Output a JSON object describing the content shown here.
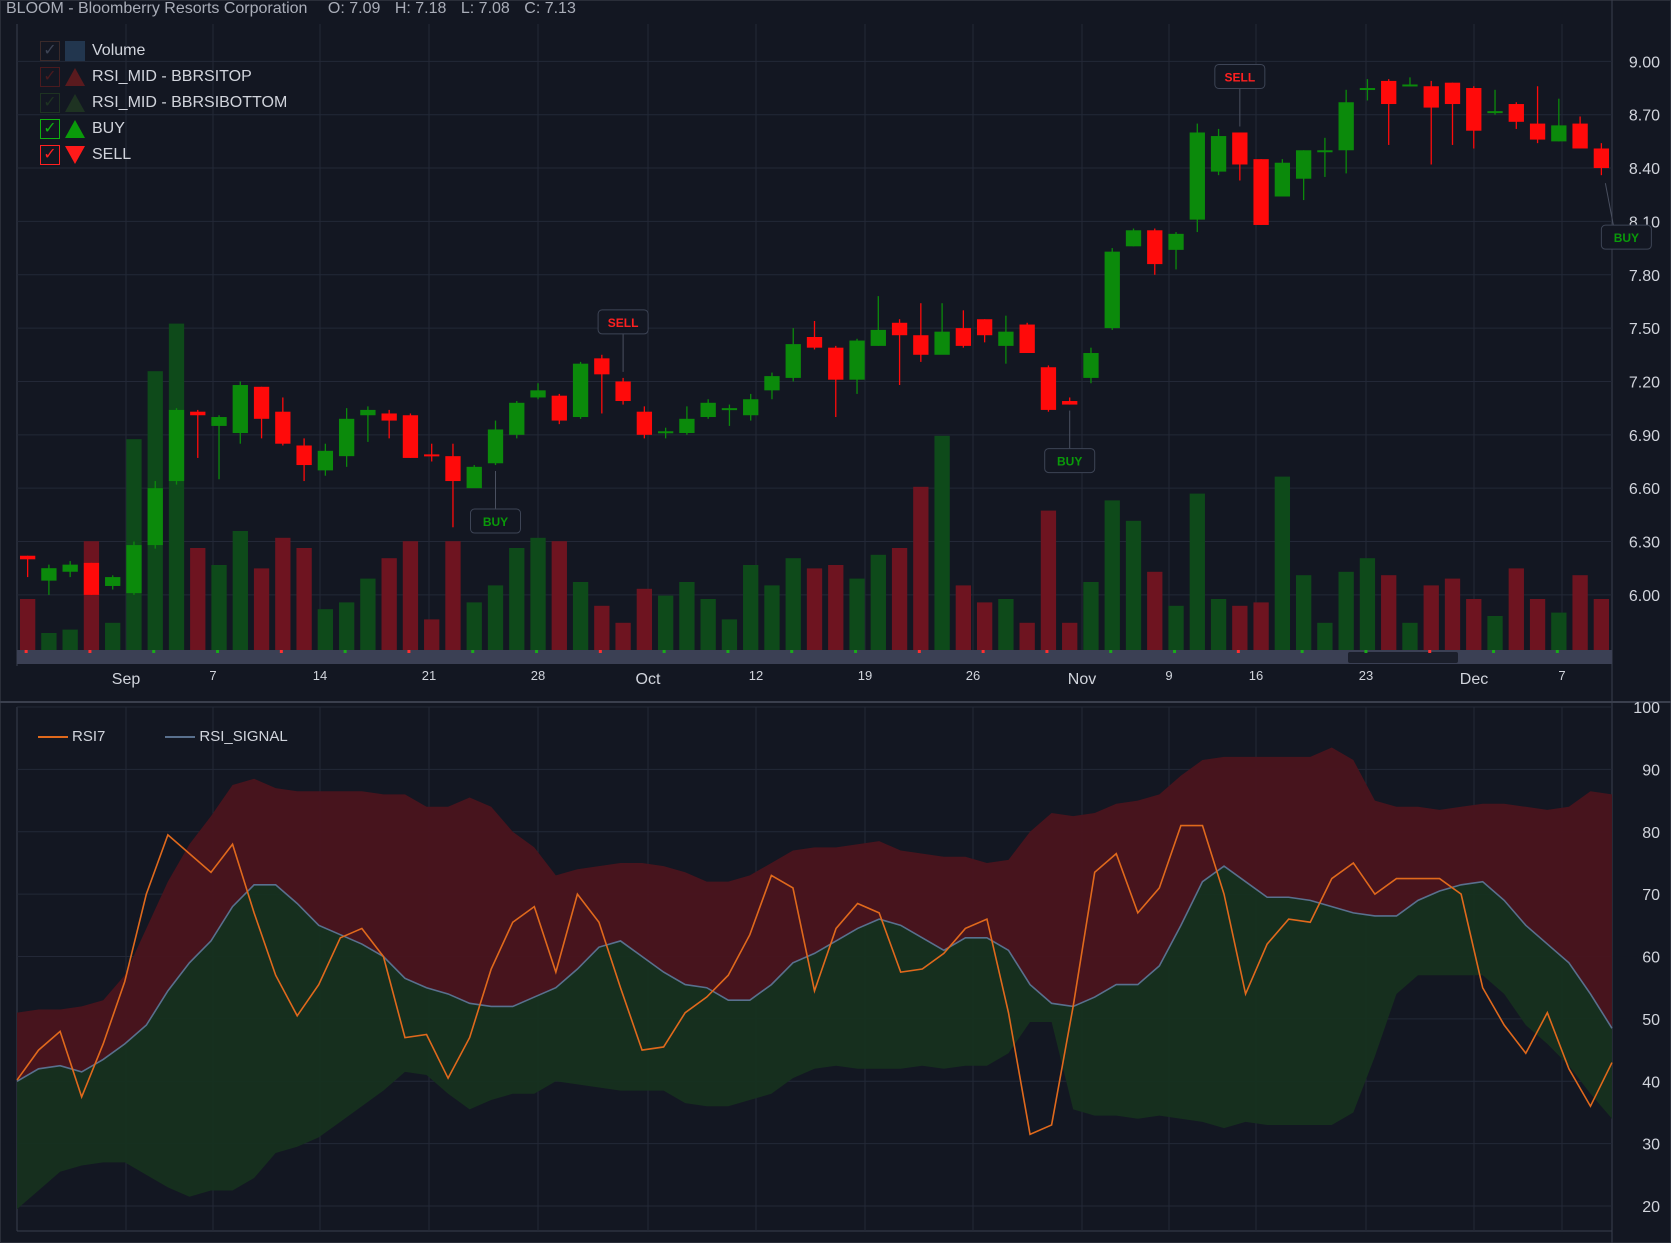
{
  "header": {
    "symbol_title": "BLOOM - Bloomberry Resorts Corporation",
    "open": "O: 7.09",
    "high": "H: 7.18",
    "low": "L: 7.08",
    "close": "C: 7.13"
  },
  "legend": {
    "items": [
      {
        "label": "Volume",
        "checked": false,
        "icon": "volume-swatch",
        "color": "#22364e"
      },
      {
        "label": "RSI_MID - BBRSITOP",
        "checked": false,
        "icon": "triangle-up",
        "color": "#5a1a1e"
      },
      {
        "label": "RSI_MID - BBRSIBOTTOM",
        "checked": false,
        "icon": "triangle-up",
        "color": "#1e3322"
      },
      {
        "label": "BUY",
        "checked": true,
        "icon": "triangle-up",
        "color": "#0a8a0a"
      },
      {
        "label": "SELL",
        "checked": true,
        "icon": "triangle-down",
        "color": "#ff1a1a"
      }
    ]
  },
  "rsi_legend": {
    "rsi7": "RSI7",
    "rsi_signal": "RSI_SIGNAL"
  },
  "colors": {
    "background": "#131722",
    "up": "#0b8a0b",
    "down": "#ff0a0a",
    "volume_up": "#0e4a1a",
    "volume_down": "#6e1420",
    "rsi7": "#e0691c",
    "rsi_signal": "#59708e",
    "band_top": "#4a141e",
    "band_bottom": "#16301f",
    "grid": "#232837"
  },
  "chart_data": [
    {
      "type": "candlestick",
      "title": "BLOOM - Bloomberry Resorts Corporation",
      "y_ticks": [
        "9.00",
        "8.70",
        "8.40",
        "8.10",
        "7.80",
        "7.50",
        "7.20",
        "6.90",
        "6.60",
        "6.30",
        "6.00"
      ],
      "ylim": [
        5.69,
        9.21
      ],
      "x_tick_labels": [
        "Sep",
        "7",
        "14",
        "21",
        "28",
        "Oct",
        "12",
        "19",
        "26",
        "Nov",
        "9",
        "16",
        "23",
        "Dec",
        "7"
      ],
      "candles": [
        [
          6.22,
          6.2,
          6.22,
          6.1
        ],
        [
          6.08,
          6.15,
          6.17,
          6.0
        ],
        [
          6.13,
          6.17,
          6.19,
          6.1
        ],
        [
          6.18,
          6.0,
          6.18,
          6.0
        ],
        [
          6.05,
          6.1,
          6.11,
          6.03
        ],
        [
          6.01,
          6.28,
          6.3,
          6.0
        ],
        [
          6.28,
          6.6,
          6.64,
          6.26
        ],
        [
          6.64,
          7.04,
          7.05,
          6.62
        ],
        [
          7.03,
          7.01,
          7.04,
          6.77
        ],
        [
          6.95,
          7.0,
          7.01,
          6.65
        ],
        [
          6.91,
          7.18,
          7.2,
          6.85
        ],
        [
          7.17,
          6.99,
          7.17,
          6.88
        ],
        [
          7.03,
          6.85,
          7.11,
          6.84
        ],
        [
          6.84,
          6.73,
          6.88,
          6.64
        ],
        [
          6.7,
          6.81,
          6.85,
          6.67
        ],
        [
          6.78,
          6.99,
          7.05,
          6.72
        ],
        [
          7.01,
          7.04,
          7.06,
          6.86
        ],
        [
          7.02,
          6.98,
          7.04,
          6.88
        ],
        [
          7.01,
          6.77,
          7.02,
          6.77
        ],
        [
          6.79,
          6.78,
          6.85,
          6.75
        ],
        [
          6.78,
          6.64,
          6.85,
          6.38
        ],
        [
          6.6,
          6.72,
          6.73,
          6.62
        ],
        [
          6.74,
          6.93,
          6.98,
          6.73
        ],
        [
          6.9,
          7.08,
          7.09,
          6.88
        ],
        [
          7.11,
          7.15,
          7.19,
          7.1
        ],
        [
          7.12,
          6.98,
          7.13,
          6.96
        ],
        [
          7.0,
          7.3,
          7.31,
          6.99
        ],
        [
          7.33,
          7.24,
          7.35,
          7.02
        ],
        [
          7.2,
          7.09,
          7.22,
          7.07
        ],
        [
          7.03,
          6.9,
          7.06,
          6.88
        ],
        [
          6.92,
          6.92,
          6.94,
          6.88
        ],
        [
          6.91,
          6.99,
          7.06,
          6.9
        ],
        [
          7.0,
          7.08,
          7.1,
          6.99
        ],
        [
          7.05,
          7.05,
          7.07,
          6.95
        ],
        [
          7.01,
          7.1,
          7.13,
          6.98
        ],
        [
          7.15,
          7.23,
          7.25,
          7.1
        ],
        [
          7.22,
          7.41,
          7.5,
          7.2
        ],
        [
          7.45,
          7.39,
          7.54,
          7.38
        ],
        [
          7.39,
          7.21,
          7.4,
          7.0
        ],
        [
          7.21,
          7.43,
          7.44,
          7.13
        ],
        [
          7.4,
          7.49,
          7.68,
          7.4
        ],
        [
          7.53,
          7.46,
          7.55,
          7.18
        ],
        [
          7.46,
          7.35,
          7.64,
          7.31
        ],
        [
          7.35,
          7.48,
          7.64,
          7.36
        ],
        [
          7.5,
          7.4,
          7.6,
          7.39
        ],
        [
          7.55,
          7.46,
          7.55,
          7.42
        ],
        [
          7.4,
          7.48,
          7.57,
          7.3
        ],
        [
          7.52,
          7.36,
          7.53,
          7.36
        ],
        [
          7.28,
          7.04,
          7.29,
          7.03
        ],
        [
          7.09,
          7.07,
          7.11,
          7.07
        ],
        [
          7.22,
          7.36,
          7.39,
          7.19
        ],
        [
          7.5,
          7.93,
          7.95,
          7.49
        ],
        [
          7.96,
          8.05,
          8.06,
          7.96
        ],
        [
          8.05,
          7.86,
          8.06,
          7.8
        ],
        [
          7.94,
          8.03,
          8.04,
          7.83
        ],
        [
          8.11,
          8.6,
          8.65,
          8.04
        ],
        [
          8.38,
          8.58,
          8.62,
          8.36
        ],
        [
          8.6,
          8.42,
          8.6,
          8.33
        ],
        [
          8.45,
          8.08,
          8.45,
          8.08
        ],
        [
          8.24,
          8.43,
          8.45,
          8.24
        ],
        [
          8.34,
          8.5,
          8.5,
          8.22
        ],
        [
          8.5,
          8.5,
          8.57,
          8.35
        ],
        [
          8.5,
          8.77,
          8.84,
          8.37
        ],
        [
          8.85,
          8.85,
          8.9,
          8.78
        ],
        [
          8.89,
          8.76,
          8.9,
          8.53
        ],
        [
          8.87,
          8.87,
          8.91,
          8.86
        ],
        [
          8.86,
          8.74,
          8.89,
          8.42
        ],
        [
          8.88,
          8.76,
          8.88,
          8.53
        ],
        [
          8.85,
          8.61,
          8.86,
          8.51
        ],
        [
          8.72,
          8.72,
          8.84,
          8.7
        ],
        [
          8.76,
          8.66,
          8.77,
          8.62
        ],
        [
          8.65,
          8.56,
          8.86,
          8.54
        ],
        [
          8.55,
          8.64,
          8.79,
          8.55
        ],
        [
          8.65,
          8.51,
          8.69,
          8.51
        ],
        [
          8.51,
          8.4,
          8.54,
          8.36
        ]
      ],
      "volume_relative": [
        0.15,
        0.05,
        0.06,
        0.32,
        0.08,
        0.62,
        0.82,
        0.96,
        0.3,
        0.25,
        0.35,
        0.24,
        0.33,
        0.3,
        0.12,
        0.14,
        0.21,
        0.27,
        0.32,
        0.09,
        0.32,
        0.14,
        0.19,
        0.3,
        0.33,
        0.32,
        0.2,
        0.13,
        0.08,
        0.18,
        0.16,
        0.2,
        0.15,
        0.09,
        0.25,
        0.19,
        0.27,
        0.24,
        0.25,
        0.21,
        0.28,
        0.3,
        0.48,
        0.63,
        0.19,
        0.14,
        0.15,
        0.08,
        0.41,
        0.08,
        0.2,
        0.44,
        0.38,
        0.23,
        0.13,
        0.46,
        0.15,
        0.13,
        0.14,
        0.51,
        0.22,
        0.08,
        0.23,
        0.27,
        0.22,
        0.08,
        0.19,
        0.21,
        0.15,
        0.1,
        0.24,
        0.15,
        0.11,
        0.22,
        0.15
      ],
      "signals": [
        {
          "type": "BUY",
          "label": "BUY",
          "index": 22
        },
        {
          "type": "SELL",
          "label": "SELL",
          "index": 28
        },
        {
          "type": "BUY",
          "label": "BUY",
          "index": 49
        },
        {
          "type": "SELL",
          "label": "SELL",
          "index": 57
        },
        {
          "type": "BUY",
          "label": "BUY",
          "index": 74
        }
      ]
    },
    {
      "type": "line",
      "series": [
        {
          "name": "RSI7",
          "values": [
            40.2,
            45,
            48,
            37.5,
            46,
            56,
            70,
            79.5,
            76.5,
            73.5,
            78,
            67,
            57,
            50.5,
            55.5,
            63,
            64.5,
            60,
            47,
            47.5,
            40.5,
            47,
            58,
            65.5,
            68,
            57.5,
            70,
            65.5,
            55,
            45,
            45.5,
            51,
            53.5,
            57,
            63.5,
            73,
            71,
            54.5,
            64.5,
            68.5,
            67,
            57.5,
            58,
            60.5,
            64.5,
            66,
            51,
            31.5,
            33,
            52,
            73.5,
            76.5,
            67,
            71,
            81,
            81,
            70,
            54,
            62,
            66,
            65.5,
            72.5,
            75,
            70,
            72.5,
            72.5,
            72.5,
            70,
            55,
            49,
            44.5,
            51,
            42,
            36,
            43
          ]
        },
        {
          "name": "RSI_SIGNAL",
          "values": [
            40,
            42,
            42.5,
            41.5,
            43.5,
            46,
            49,
            54.5,
            59,
            62.5,
            68,
            71.5,
            71.5,
            68.5,
            65,
            63.5,
            62,
            60,
            56.5,
            55,
            54,
            52.5,
            52,
            52,
            53.5,
            55,
            58,
            61.5,
            62.5,
            60,
            57.5,
            55.5,
            55,
            53,
            53,
            55.5,
            59,
            60.5,
            62.5,
            64.5,
            66,
            65,
            63,
            61,
            63,
            63,
            61,
            55.5,
            52.5,
            52,
            53.5,
            55.5,
            55.5,
            58.5,
            65,
            72,
            74.5,
            72,
            69.5,
            69.5,
            69,
            68,
            67,
            66.5,
            66.5,
            69,
            70.5,
            71.5,
            72,
            69,
            65,
            62,
            59,
            54,
            48.5
          ]
        },
        {
          "name": "BBRSITOP",
          "values": [
            51,
            51.5,
            51.5,
            52,
            53,
            57,
            64.5,
            72,
            78,
            82.5,
            87.5,
            88.5,
            87,
            86.5,
            86.5,
            86.5,
            86.5,
            86,
            86,
            84,
            84,
            85.5,
            84,
            80,
            77.5,
            73,
            74,
            74.5,
            75,
            75,
            74.5,
            73.5,
            72,
            72,
            73,
            75,
            77,
            77.5,
            77.5,
            78,
            78.5,
            77,
            76.5,
            76,
            76,
            75,
            75.5,
            80,
            83,
            82.5,
            83,
            84.5,
            85,
            86,
            89,
            91.5,
            92,
            92,
            92,
            92,
            92,
            93.5,
            91.5,
            85,
            84,
            84,
            83.5,
            84,
            84.5,
            84.5,
            84,
            83.5,
            84,
            86.5,
            86
          ]
        },
        {
          "name": "BBRSIBOTTOM",
          "values": [
            19.5,
            22.5,
            25.5,
            26.5,
            27,
            27,
            25,
            23,
            21.5,
            22.5,
            22.5,
            24.5,
            28.5,
            29.5,
            31,
            33.5,
            36,
            38.5,
            41.5,
            41,
            38,
            35.5,
            37,
            38,
            38,
            40,
            39.5,
            39,
            38.5,
            38.5,
            38.5,
            36.5,
            36,
            36,
            37,
            38,
            40.5,
            42,
            42.5,
            42,
            42,
            42,
            42.5,
            42,
            42.5,
            42.5,
            44.5,
            49.5,
            49.5,
            35.5,
            34.5,
            34.5,
            34,
            34.5,
            34,
            33.5,
            32.5,
            33.5,
            33,
            33,
            33,
            33,
            35,
            44,
            54,
            57,
            57,
            57,
            57,
            54,
            49,
            46,
            42.5,
            38,
            34
          ]
        }
      ],
      "ylim": [
        16,
        100
      ],
      "y_ticks": [
        "100",
        "90",
        "80",
        "70",
        "60",
        "50",
        "40",
        "30",
        "20"
      ]
    }
  ]
}
